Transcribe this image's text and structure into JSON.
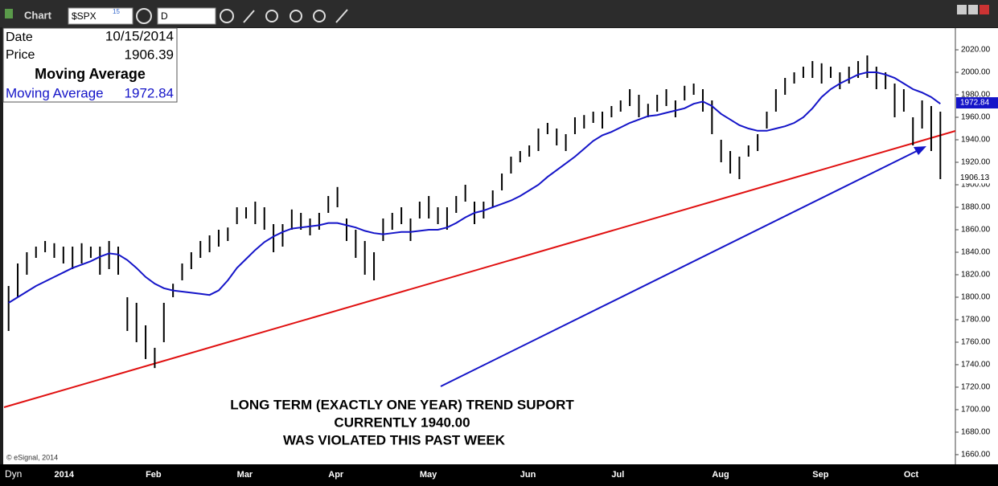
{
  "toolbar": {
    "title": "Chart",
    "symbol": "$SPX",
    "symbol_badge": "15",
    "interval": "D"
  },
  "footer": {
    "copyright": "© eSignal, 2014",
    "mode": "Dyn"
  },
  "info": {
    "date_label": "Date",
    "date": "10/15/2014",
    "price_label": "Price",
    "price": 1906.39,
    "ma": 1972.84
  },
  "chart_data": {
    "type": "ohlc",
    "annotation": [
      "LONG TERM (EXACTLY ONE YEAR) TREND SUPORT",
      "CURRENTLY 1940.00",
      "WAS VIOLATED THIS PAST WEEK"
    ],
    "categories": [
      null,
      null,
      null,
      null,
      null,
      "2014",
      null,
      null,
      null,
      null,
      null,
      null,
      null,
      null,
      null,
      "Feb",
      null,
      null,
      null,
      null,
      null,
      null,
      null,
      null,
      null,
      "Mar",
      null,
      null,
      null,
      null,
      null,
      null,
      null,
      null,
      null,
      "Apr",
      null,
      null,
      null,
      null,
      null,
      null,
      null,
      null,
      null,
      "May",
      null,
      null,
      null,
      null,
      null,
      null,
      null,
      null,
      null,
      null,
      "Jun",
      null,
      null,
      null,
      null,
      null,
      null,
      null,
      null,
      null,
      "Jul",
      null,
      null,
      null,
      null,
      null,
      null,
      null,
      null,
      null,
      null,
      "Aug",
      null,
      null,
      null,
      null,
      null,
      null,
      null,
      null,
      null,
      null,
      "Sep",
      null,
      null,
      null,
      null,
      null,
      null,
      null,
      null,
      null,
      "Oct",
      null,
      null,
      null,
      null
    ],
    "high": [
      1810,
      1830,
      1840,
      1845,
      1850,
      1848,
      1845,
      1845,
      1848,
      1845,
      1845,
      1850,
      1845,
      1800,
      1795,
      1775,
      1755,
      1795,
      1812,
      1830,
      1840,
      1850,
      1855,
      1860,
      1862,
      1880,
      1880,
      1885,
      1880,
      1865,
      1865,
      1878,
      1875,
      1870,
      1875,
      1890,
      1898,
      1870,
      1860,
      1850,
      1840,
      1870,
      1875,
      1880,
      1870,
      1885,
      1890,
      1880,
      1880,
      1890,
      1900,
      1885,
      1885,
      1895,
      1910,
      1925,
      1930,
      1935,
      1950,
      1955,
      1950,
      1945,
      1960,
      1962,
      1965,
      1965,
      1970,
      1975,
      1985,
      1980,
      1972,
      1980,
      1985,
      1975,
      1988,
      1990,
      1985,
      1975,
      1940,
      1930,
      1925,
      1935,
      1945,
      1965,
      1985,
      1995,
      2000,
      2005,
      2010,
      2008,
      2005,
      2000,
      2005,
      2010,
      2015,
      2005,
      2000,
      1990,
      1985,
      1960,
      1975,
      1970,
      1965
    ],
    "low": [
      1770,
      1800,
      1820,
      1835,
      1840,
      1835,
      1830,
      1825,
      1830,
      1835,
      1820,
      1825,
      1820,
      1770,
      1760,
      1745,
      1737,
      1760,
      1800,
      1815,
      1825,
      1835,
      1840,
      1845,
      1850,
      1865,
      1870,
      1865,
      1860,
      1840,
      1845,
      1860,
      1860,
      1855,
      1860,
      1875,
      1880,
      1850,
      1835,
      1820,
      1815,
      1850,
      1860,
      1865,
      1850,
      1870,
      1870,
      1865,
      1860,
      1875,
      1885,
      1865,
      1870,
      1880,
      1895,
      1910,
      1920,
      1925,
      1930,
      1945,
      1935,
      1930,
      1945,
      1950,
      1955,
      1950,
      1960,
      1965,
      1970,
      1960,
      1960,
      1965,
      1970,
      1960,
      1975,
      1980,
      1965,
      1945,
      1920,
      1910,
      1905,
      1925,
      1930,
      1950,
      1965,
      1980,
      1990,
      1995,
      1995,
      1990,
      1995,
      1985,
      1990,
      1995,
      1995,
      1985,
      1985,
      1960,
      1965,
      1935,
      1950,
      1930,
      1905
    ],
    "bar_color": "#000000",
    "series": [
      {
        "name": "Moving Average",
        "color": "#1414c8",
        "values": [
          1795,
          1800,
          1805,
          1810,
          1814,
          1818,
          1822,
          1826,
          1829,
          1832,
          1836,
          1839,
          1838,
          1833,
          1826,
          1818,
          1812,
          1808,
          1806,
          1805,
          1804,
          1803,
          1802,
          1806,
          1815,
          1826,
          1834,
          1842,
          1849,
          1854,
          1858,
          1861,
          1862,
          1863,
          1864,
          1866,
          1866,
          1864,
          1862,
          1859,
          1857,
          1856,
          1857,
          1858,
          1858,
          1859,
          1860,
          1860,
          1862,
          1866,
          1871,
          1875,
          1877,
          1880,
          1883,
          1886,
          1890,
          1895,
          1900,
          1907,
          1913,
          1919,
          1925,
          1932,
          1939,
          1944,
          1947,
          1951,
          1955,
          1958,
          1961,
          1962,
          1964,
          1966,
          1968,
          1972,
          1974,
          1970,
          1963,
          1958,
          1953,
          1950,
          1948,
          1948,
          1950,
          1952,
          1955,
          1960,
          1968,
          1978,
          1985,
          1990,
          1994,
          1998,
          2000,
          2000,
          1998,
          1995,
          1990,
          1985,
          1982,
          1978,
          1972
        ]
      }
    ],
    "ylim": [
      1651.4,
      2039.3
    ],
    "yticks": [
      {
        "value": 1660,
        "label": "1660.00"
      },
      {
        "value": 1680,
        "label": "1680.00"
      },
      {
        "value": 1700,
        "label": "1700.00"
      },
      {
        "value": 1720,
        "label": "1720.00"
      },
      {
        "value": 1740,
        "label": "1740.00"
      },
      {
        "value": 1760,
        "label": "1760.00"
      },
      {
        "value": 1780,
        "label": "1780.00"
      },
      {
        "value": 1800,
        "label": "1800.00"
      },
      {
        "value": 1820,
        "label": "1820.00"
      },
      {
        "value": 1840,
        "label": "1840.00"
      },
      {
        "value": 1860,
        "label": "1860.00"
      },
      {
        "value": 1880,
        "label": "1880.00"
      },
      {
        "value": 1900,
        "label": "1900.00"
      },
      {
        "value": 1920,
        "label": "1920.00"
      },
      {
        "value": 1940,
        "label": "1940.00"
      },
      {
        "value": 1960,
        "label": "1960.00"
      },
      {
        "value": 1980,
        "label": "1980.00"
      },
      {
        "value": 2000,
        "label": "2000.00"
      },
      {
        "value": 2020,
        "label": "2020.00"
      }
    ],
    "axis_markers": [
      {
        "value": 1972.84,
        "color": "#1414c8",
        "text_color": "#ffffff"
      },
      {
        "value": 1906.13,
        "color": "#ffffff",
        "text_color": "#000000"
      }
    ]
  }
}
